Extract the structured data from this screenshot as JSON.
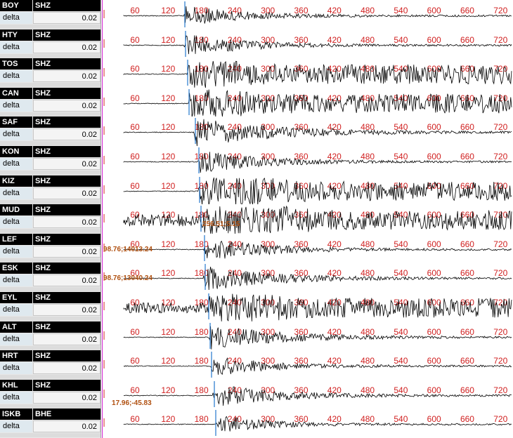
{
  "rows": [
    {
      "station": "BOY",
      "channel": "SHZ",
      "param": "delta",
      "value": "0.02",
      "pick": 262,
      "amp": 0.9,
      "ticks": [
        "60",
        "120",
        "180",
        "240",
        "300",
        "360",
        "420",
        "480",
        "540",
        "600",
        "660",
        "720"
      ],
      "annotation": ""
    },
    {
      "station": "HTY",
      "channel": "SHZ",
      "param": "delta",
      "value": "0.02",
      "pick": 263,
      "amp": 0.95,
      "ticks": [
        "60",
        "120",
        "180",
        "240",
        "300",
        "360",
        "420",
        "480",
        "540",
        "600",
        "660",
        "720"
      ],
      "annotation": ""
    },
    {
      "station": "TOS",
      "channel": "SHZ",
      "param": "delta",
      "value": "0.02",
      "pick": 266,
      "amp": 1.8,
      "ticks": [
        "60",
        "120",
        "180",
        "240",
        "300",
        "360",
        "420",
        "480",
        "540",
        "600",
        "660",
        "720"
      ],
      "annotation": ""
    },
    {
      "station": "CAN",
      "channel": "SHZ",
      "param": "delta",
      "value": "0.02",
      "pick": 268,
      "amp": 1.7,
      "ticks": [
        "60",
        "120",
        "180",
        "240",
        "300",
        "360",
        "420",
        "480",
        "540",
        "600",
        "660",
        "720"
      ],
      "annotation": ""
    },
    {
      "station": "SAF",
      "channel": "SHZ",
      "param": "delta",
      "value": "0.02",
      "pick": 277,
      "amp": 1.3,
      "ticks": [
        "60",
        "120",
        "180",
        "240",
        "300",
        "360",
        "420",
        "480",
        "540",
        "600",
        "660",
        "720"
      ],
      "annotation": ""
    },
    {
      "station": "KON",
      "channel": "SHZ",
      "param": "delta",
      "value": "0.02",
      "pick": 282,
      "amp": 1.0,
      "ticks": [
        "60",
        "120",
        "180",
        "240",
        "300",
        "360",
        "420",
        "480",
        "540",
        "600",
        "660",
        "720"
      ],
      "annotation": ""
    },
    {
      "station": "KIZ",
      "channel": "SHZ",
      "param": "delta",
      "value": "0.02",
      "pick": 283,
      "amp": 2.0,
      "ticks": [
        "60",
        "120",
        "180",
        "240",
        "300",
        "360",
        "420",
        "480",
        "540",
        "600",
        "660",
        "720"
      ],
      "annotation": ""
    },
    {
      "station": "MUD",
      "channel": "SHZ",
      "param": "delta",
      "value": "0.02",
      "pick": 285,
      "amp": 2.2,
      "ticks": [
        "60",
        "120",
        "180",
        "240",
        "300",
        "360",
        "420",
        "480",
        "540",
        "600",
        "660",
        "720"
      ],
      "annotation": "256.51;5.15"
    },
    {
      "station": "LEF",
      "channel": "SHZ",
      "param": "delta",
      "value": "0.02",
      "pick": 290,
      "amp": 1.0,
      "ticks": [
        "60",
        "120",
        "180",
        "240",
        "300",
        "360",
        "420",
        "480",
        "540",
        "600",
        "660",
        "720"
      ],
      "annotation": "98.76;14013.24"
    },
    {
      "station": "ESK",
      "channel": "SHZ",
      "param": "delta",
      "value": "0.02",
      "pick": 291,
      "amp": 1.1,
      "ticks": [
        "60",
        "120",
        "180",
        "240",
        "300",
        "360",
        "420",
        "480",
        "540",
        "600",
        "660",
        "720"
      ],
      "annotation": "98.76;13040.24"
    },
    {
      "station": "EYL",
      "channel": "SHZ",
      "param": "delta",
      "value": "0.02",
      "pick": 296,
      "amp": 1.9,
      "ticks": [
        "60",
        "120",
        "180",
        "240",
        "300",
        "360",
        "420",
        "480",
        "540",
        "600",
        "660",
        "720"
      ],
      "annotation": ""
    },
    {
      "station": "ALT",
      "channel": "SHZ",
      "param": "delta",
      "value": "0.02",
      "pick": 298,
      "amp": 1.1,
      "ticks": [
        "60",
        "120",
        "180",
        "240",
        "300",
        "360",
        "420",
        "480",
        "540",
        "600",
        "660",
        "720"
      ],
      "annotation": ""
    },
    {
      "station": "HRT",
      "channel": "SHZ",
      "param": "delta",
      "value": "0.02",
      "pick": 300,
      "amp": 0.9,
      "ticks": [
        "60",
        "120",
        "180",
        "240",
        "300",
        "360",
        "420",
        "480",
        "540",
        "600",
        "660",
        "720"
      ],
      "annotation": ""
    },
    {
      "station": "KHL",
      "channel": "SHZ",
      "param": "delta",
      "value": "0.02",
      "pick": 304,
      "amp": 1.0,
      "ticks": [
        "60",
        "120",
        "180",
        "240",
        "300",
        "360",
        "420",
        "480",
        "540",
        "600",
        "660",
        "720"
      ],
      "annotation": "17.96;-45.83"
    },
    {
      "station": "ISKB",
      "channel": "BHE",
      "param": "delta",
      "value": "0.02",
      "pick": 306,
      "amp": 0.8,
      "ticks": [
        "60",
        "120",
        "180",
        "240",
        "300",
        "360",
        "420",
        "480",
        "540",
        "600",
        "660",
        "720"
      ],
      "annotation": ""
    }
  ],
  "colors": {
    "tick": "#d02020",
    "pick": "#2277cc",
    "trace": "#000000",
    "border": "#d020d0",
    "annotation": "#b05010"
  }
}
